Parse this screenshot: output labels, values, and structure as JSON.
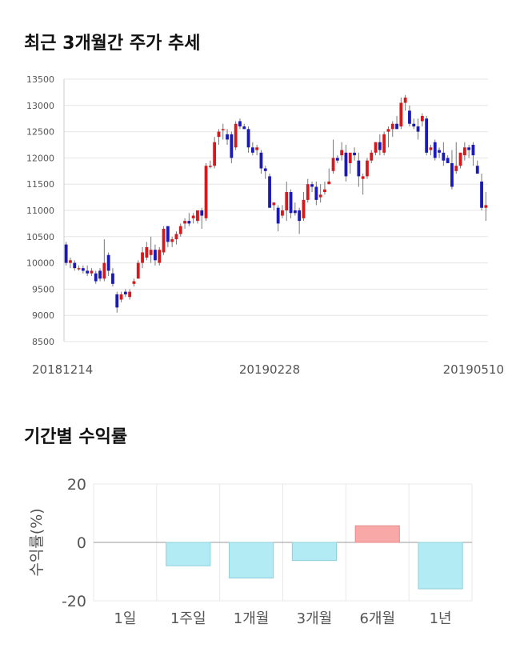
{
  "section1": {
    "title": "최근 3개월간 주가 추세"
  },
  "section2": {
    "title": "기간별 수익률"
  },
  "chart_data": [
    {
      "type": "candlestick",
      "title": "최근 3개월간 주가 추세",
      "y_ticks": [
        "13500",
        "13000",
        "12500",
        "12000",
        "11500",
        "11000",
        "10500",
        "10000",
        "9500",
        "9000",
        "8500"
      ],
      "ylim": [
        8500,
        13500
      ],
      "x_tick_labels": [
        "20181214",
        "20190228",
        "20190510"
      ],
      "grid": true,
      "colors": {
        "up": "#d7191c",
        "down": "#1a1ab8",
        "wick": "#777777"
      },
      "candles": [
        [
          10350,
          10400,
          9950,
          10000
        ],
        [
          10000,
          10100,
          9900,
          10050
        ],
        [
          10000,
          10050,
          9850,
          9900
        ],
        [
          9900,
          9950,
          9850,
          9900
        ],
        [
          9900,
          9950,
          9800,
          9850
        ],
        [
          9850,
          9950,
          9750,
          9800
        ],
        [
          9800,
          9900,
          9750,
          9850
        ],
        [
          9800,
          9850,
          9600,
          9650
        ],
        [
          9850,
          9900,
          9650,
          9700
        ],
        [
          9700,
          10450,
          9650,
          10000
        ],
        [
          10150,
          10200,
          9750,
          9850
        ],
        [
          9800,
          9900,
          9550,
          9600
        ],
        [
          9400,
          9450,
          9050,
          9150
        ],
        [
          9300,
          9450,
          9250,
          9400
        ],
        [
          9450,
          9500,
          9350,
          9400
        ],
        [
          9350,
          9500,
          9300,
          9450
        ],
        [
          9600,
          9700,
          9550,
          9650
        ],
        [
          9700,
          10050,
          9700,
          10000
        ],
        [
          10000,
          10300,
          9900,
          10200
        ],
        [
          10100,
          10400,
          10050,
          10300
        ],
        [
          10150,
          10500,
          10000,
          10250
        ],
        [
          10250,
          10350,
          9950,
          10050
        ],
        [
          10000,
          10300,
          9950,
          10250
        ],
        [
          10200,
          10700,
          10150,
          10650
        ],
        [
          10700,
          10700,
          10300,
          10400
        ],
        [
          10400,
          10500,
          10300,
          10450
        ],
        [
          10450,
          10600,
          10350,
          10550
        ],
        [
          10550,
          10750,
          10500,
          10700
        ],
        [
          10750,
          10850,
          10650,
          10800
        ],
        [
          10800,
          10950,
          10700,
          10750
        ],
        [
          10850,
          10950,
          10750,
          10900
        ],
        [
          10800,
          11000,
          10750,
          11000
        ],
        [
          11000,
          11050,
          10650,
          10900
        ],
        [
          10850,
          11900,
          10800,
          11850
        ],
        [
          11850,
          11950,
          11800,
          11850
        ],
        [
          11850,
          12400,
          11800,
          12300
        ],
        [
          12400,
          12550,
          12250,
          12500
        ],
        [
          12550,
          12650,
          12350,
          12550
        ],
        [
          12450,
          12550,
          12250,
          12350
        ],
        [
          12450,
          12500,
          11900,
          12000
        ],
        [
          12200,
          12700,
          12150,
          12650
        ],
        [
          12700,
          12750,
          12550,
          12600
        ],
        [
          12600,
          12650,
          12550,
          12550
        ],
        [
          12550,
          12600,
          12100,
          12200
        ],
        [
          12200,
          12300,
          12050,
          12100
        ],
        [
          12150,
          12250,
          12050,
          12200
        ],
        [
          12100,
          12150,
          11700,
          11800
        ],
        [
          11800,
          11850,
          11600,
          11750
        ],
        [
          11650,
          11700,
          11050,
          11050
        ],
        [
          11100,
          11150,
          11000,
          11150
        ],
        [
          11050,
          11100,
          10600,
          10750
        ],
        [
          10900,
          11100,
          10850,
          11000
        ],
        [
          11000,
          11550,
          10800,
          11350
        ],
        [
          11350,
          11400,
          10850,
          10950
        ],
        [
          11000,
          11150,
          10900,
          10950
        ],
        [
          11000,
          11050,
          10550,
          10800
        ],
        [
          10850,
          11350,
          10800,
          11200
        ],
        [
          11200,
          11600,
          11150,
          11500
        ],
        [
          11500,
          11550,
          11350,
          11450
        ],
        [
          11450,
          11550,
          11100,
          11200
        ],
        [
          11250,
          11500,
          11150,
          11300
        ],
        [
          11350,
          11550,
          11300,
          11400
        ],
        [
          11500,
          11800,
          11500,
          11550
        ],
        [
          11750,
          12350,
          11700,
          12000
        ],
        [
          12000,
          12050,
          11900,
          11950
        ],
        [
          12050,
          12300,
          11950,
          12150
        ],
        [
          12100,
          12250,
          11550,
          11650
        ],
        [
          11900,
          12100,
          11700,
          12100
        ],
        [
          12100,
          12200,
          11950,
          12050
        ],
        [
          11950,
          12100,
          11450,
          11650
        ],
        [
          11600,
          11700,
          11300,
          11650
        ],
        [
          11650,
          12000,
          11600,
          11950
        ],
        [
          11950,
          12150,
          11900,
          12100
        ],
        [
          12100,
          12300,
          12050,
          12300
        ],
        [
          12300,
          12450,
          12050,
          12150
        ],
        [
          12100,
          12500,
          12050,
          12450
        ],
        [
          12500,
          12600,
          12200,
          12550
        ],
        [
          12550,
          12700,
          12400,
          12650
        ],
        [
          12650,
          12800,
          12550,
          12550
        ],
        [
          12600,
          13150,
          12550,
          13050
        ],
        [
          13050,
          13200,
          12900,
          13150
        ],
        [
          12900,
          13000,
          12600,
          12650
        ],
        [
          12650,
          12750,
          12550,
          12600
        ],
        [
          12600,
          12750,
          12350,
          12500
        ],
        [
          12700,
          12850,
          12600,
          12800
        ],
        [
          12750,
          12800,
          12050,
          12100
        ],
        [
          12150,
          12250,
          12050,
          12200
        ],
        [
          12300,
          12350,
          11950,
          12000
        ],
        [
          12150,
          12200,
          12000,
          12100
        ],
        [
          12100,
          12300,
          11850,
          11950
        ],
        [
          12000,
          12050,
          11900,
          11900
        ],
        [
          11900,
          12150,
          11400,
          11450
        ],
        [
          11750,
          12300,
          11700,
          11850
        ],
        [
          11850,
          12100,
          11800,
          12100
        ],
        [
          12050,
          12300,
          11950,
          12200
        ],
        [
          12200,
          12250,
          12000,
          12150
        ],
        [
          12250,
          12300,
          11850,
          12050
        ],
        [
          11850,
          11950,
          11700,
          11700
        ],
        [
          11550,
          11700,
          11000,
          11050
        ],
        [
          11050,
          11350,
          10800,
          11100
        ]
      ]
    },
    {
      "type": "bar",
      "title": "기간별 수익률",
      "ylabel": "수익률(%)",
      "y_ticks": [
        "20",
        "0",
        "-20"
      ],
      "ylim": [
        -20,
        20
      ],
      "categories": [
        "1일",
        "1주일",
        "1개월",
        "3개월",
        "6개월",
        "1년"
      ],
      "values": [
        0,
        -8.0,
        -12.2,
        -6.2,
        5.7,
        -15.9
      ],
      "grid": true,
      "colors": {
        "positive": "#f9a8a8",
        "positive_stroke": "#e48a8a",
        "negative": "#b3ebf4",
        "negative_stroke": "#8fd0dd"
      }
    }
  ]
}
